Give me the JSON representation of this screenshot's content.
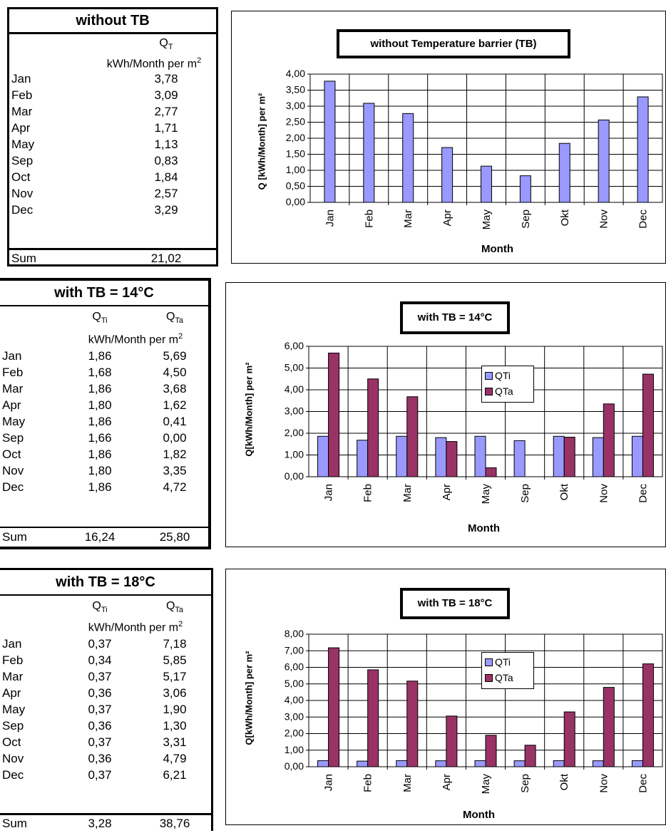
{
  "colors": {
    "qti": "#9999ff",
    "qta": "#993366",
    "frame": "#000000"
  },
  "tables": [
    {
      "title": "without TB",
      "col_headers": [
        "Q",
        "T"
      ],
      "unit_text": "kWh/Month per m",
      "unit_sup": "2",
      "rows": [
        {
          "month": "Jan",
          "v1": "3,78"
        },
        {
          "month": "Feb",
          "v1": "3,09"
        },
        {
          "month": "Mar",
          "v1": "2,77"
        },
        {
          "month": "Apr",
          "v1": "1,71"
        },
        {
          "month": "May",
          "v1": "1,13"
        },
        {
          "month": "Sep",
          "v1": "0,83"
        },
        {
          "month": "Oct",
          "v1": "1,84"
        },
        {
          "month": "Nov",
          "v1": "2,57"
        },
        {
          "month": "Dec",
          "v1": "3,29"
        }
      ],
      "sum_label": "Sum",
      "sum_v1": "21,02"
    },
    {
      "title": "with TB = 14°C",
      "col1_main": "Q",
      "col1_sub": "Ti",
      "col2_main": "Q",
      "col2_sub": "Ta",
      "unit_text": "kWh/Month per m",
      "unit_sup": "2",
      "rows": [
        {
          "month": "Jan",
          "v1": "1,86",
          "v2": "5,69"
        },
        {
          "month": "Feb",
          "v1": "1,68",
          "v2": "4,50"
        },
        {
          "month": "Mar",
          "v1": "1,86",
          "v2": "3,68"
        },
        {
          "month": "Apr",
          "v1": "1,80",
          "v2": "1,62"
        },
        {
          "month": "May",
          "v1": "1,86",
          "v2": "0,41"
        },
        {
          "month": "Sep",
          "v1": "1,66",
          "v2": "0,00"
        },
        {
          "month": "Oct",
          "v1": "1,86",
          "v2": "1,82"
        },
        {
          "month": "Nov",
          "v1": "1,80",
          "v2": "3,35"
        },
        {
          "month": "Dec",
          "v1": "1,86",
          "v2": "4,72"
        }
      ],
      "sum_label": "Sum",
      "sum_v1": "16,24",
      "sum_v2": "25,80"
    },
    {
      "title": "with TB = 18°C",
      "col1_main": "Q",
      "col1_sub": "Ti",
      "col2_main": "Q",
      "col2_sub": "Ta",
      "unit_text": "kWh/Month per m",
      "unit_sup": "2",
      "rows": [
        {
          "month": "Jan",
          "v1": "0,37",
          "v2": "7,18"
        },
        {
          "month": "Feb",
          "v1": "0,34",
          "v2": "5,85"
        },
        {
          "month": "Mar",
          "v1": "0,37",
          "v2": "5,17"
        },
        {
          "month": "Apr",
          "v1": "0,36",
          "v2": "3,06"
        },
        {
          "month": "May",
          "v1": "0,37",
          "v2": "1,90"
        },
        {
          "month": "Sep",
          "v1": "0,36",
          "v2": "1,30"
        },
        {
          "month": "Oct",
          "v1": "0,37",
          "v2": "3,31"
        },
        {
          "month": "Nov",
          "v1": "0,36",
          "v2": "4,79"
        },
        {
          "month": "Dec",
          "v1": "0,37",
          "v2": "6,21"
        }
      ],
      "sum_label": "Sum",
      "sum_v1": "3,28",
      "sum_v2": "38,76"
    }
  ],
  "chart_data": [
    {
      "type": "bar",
      "title": "without Temperature barrier (TB)",
      "xlabel": "Month",
      "ylabel": "Q [kWh/Month] per m²",
      "categories": [
        "Jan",
        "Feb",
        "Mar",
        "Apr",
        "May",
        "Sep",
        "Okt",
        "Nov",
        "Dec"
      ],
      "series": [
        {
          "values": [
            3.78,
            3.09,
            2.77,
            1.71,
            1.13,
            0.83,
            1.84,
            2.57,
            3.29
          ]
        }
      ],
      "ylim": [
        0,
        4
      ],
      "yticks": [
        "0,00",
        "0,50",
        "1,00",
        "1,50",
        "2,00",
        "2,50",
        "3,00",
        "3,50",
        "4,00"
      ],
      "grid": true,
      "legend": "none"
    },
    {
      "type": "bar",
      "title": "with TB = 14°C",
      "xlabel": "Month",
      "ylabel": "Q[kWh/Month] per m²",
      "categories": [
        "Jan",
        "Feb",
        "Mar",
        "Apr",
        "May",
        "Sep",
        "Okt",
        "Nov",
        "Dec"
      ],
      "series": [
        {
          "name": "QTi",
          "values": [
            1.86,
            1.68,
            1.86,
            1.8,
            1.86,
            1.66,
            1.86,
            1.8,
            1.86
          ]
        },
        {
          "name": "QTa",
          "values": [
            5.69,
            4.5,
            3.68,
            1.62,
            0.41,
            0.0,
            1.82,
            3.35,
            4.72
          ]
        }
      ],
      "ylim": [
        0,
        6
      ],
      "yticks": [
        "0,00",
        "1,00",
        "2,00",
        "3,00",
        "4,00",
        "5,00",
        "6,00"
      ],
      "grid": true,
      "legend": "top-right"
    },
    {
      "type": "bar",
      "title": "with TB = 18°C",
      "xlabel": "Month",
      "ylabel": "Q[kWh/Month] per m²",
      "categories": [
        "Jan",
        "Feb",
        "Mar",
        "Apr",
        "May",
        "Sep",
        "Okt",
        "Nov",
        "Dec"
      ],
      "series": [
        {
          "name": "QTi",
          "values": [
            0.37,
            0.34,
            0.37,
            0.36,
            0.37,
            0.36,
            0.37,
            0.36,
            0.37
          ]
        },
        {
          "name": "QTa",
          "values": [
            7.18,
            5.85,
            5.17,
            3.06,
            1.9,
            1.3,
            3.31,
            4.79,
            6.21
          ]
        }
      ],
      "ylim": [
        0,
        8
      ],
      "yticks": [
        "0,00",
        "1,00",
        "2,00",
        "3,00",
        "4,00",
        "5,00",
        "6,00",
        "7,00",
        "8,00"
      ],
      "grid": true,
      "legend": "top-right"
    }
  ]
}
